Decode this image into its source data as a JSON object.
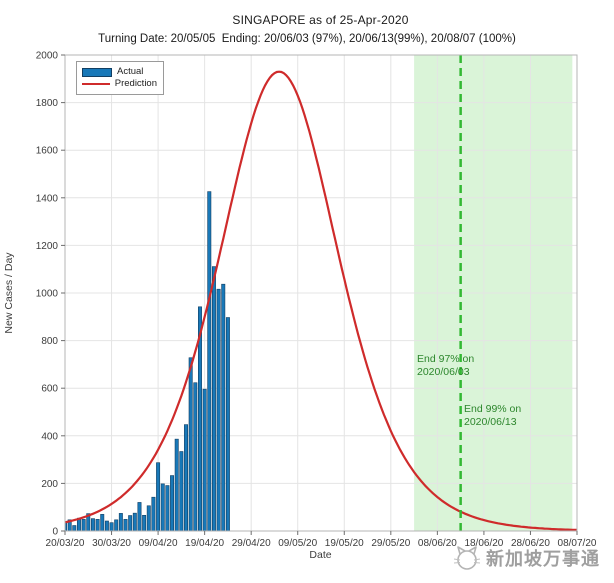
{
  "title": "SINGAPORE as of 25-Apr-2020",
  "subtitle": "Turning Date: 20/05/05  Ending: 20/06/03 (97%), 20/06/13(99%), 20/08/07 (100%)",
  "legend": {
    "actual_label": "Actual",
    "prediction_label": "Prediction"
  },
  "axes": {
    "xlabel": "Date",
    "ylabel": "New Cases / Day"
  },
  "annotations": {
    "end97": {
      "line1": "End 97% on",
      "line2": "2020/06/03"
    },
    "end99": {
      "line1": "End 99% on",
      "line2": "2020/06/13"
    }
  },
  "watermark": {
    "text": "新加坡万事通"
  },
  "chart_data": {
    "type": "bar",
    "title": "SINGAPORE as of 25-Apr-2020",
    "xlabel": "Date",
    "ylabel": "New Cases / Day",
    "ylim": [
      0,
      2000
    ],
    "y_ticks": [
      0,
      200,
      400,
      600,
      800,
      1000,
      1200,
      1400,
      1600,
      1800,
      2000
    ],
    "x_domain_days": [
      0,
      110
    ],
    "x_ticks_days": [
      0,
      10,
      20,
      30,
      40,
      50,
      60,
      70,
      80,
      90,
      100,
      110
    ],
    "x_tick_labels": [
      "20/03/20",
      "30/03/20",
      "09/04/20",
      "19/04/20",
      "29/04/20",
      "09/05/20",
      "19/05/20",
      "29/05/20",
      "08/06/20",
      "18/06/20",
      "28/06/20",
      "08/07/20"
    ],
    "grid": true,
    "legend_position": "top-left",
    "series": [
      {
        "name": "Actual",
        "kind": "bar",
        "start_date": "2020-03-20",
        "end_date": "2020-04-24",
        "values": [
          40,
          47,
          23,
          54,
          49,
          73,
          52,
          49,
          70,
          42,
          35,
          47,
          74,
          49,
          65,
          75,
          120,
          66,
          106,
          142,
          287,
          198,
          191,
          233,
          386,
          334,
          447,
          728,
          623,
          942,
          596,
          1426,
          1111,
          1016,
          1037,
          897
        ]
      },
      {
        "name": "Prediction",
        "kind": "line",
        "model": "peak*sech^2((day-peak_day)/tau)",
        "peak_value": 1930,
        "peak_day": 46,
        "peak_date": "2020-05-05",
        "tau_days": 17.2,
        "sample_days": [
          0,
          5,
          10,
          15,
          20,
          25,
          30,
          35,
          40,
          45,
          50,
          55,
          60,
          65,
          70,
          75,
          80,
          85,
          90,
          95,
          100,
          105,
          110
        ],
        "sample_values": [
          36,
          65,
          112,
          198,
          332,
          568,
          903,
          1316,
          1713,
          1923,
          1829,
          1486,
          1059,
          687,
          421,
          248,
          143,
          81,
          46,
          26,
          14,
          8,
          4
        ]
      }
    ],
    "events": {
      "shade_start_day": 75,
      "shade_end_day": 109,
      "shade_start_date": "2020-06-03",
      "dashed_line_day": 85,
      "dashed_line_date": "2020-06-13"
    },
    "colors": {
      "bar_fill": "#1878b8",
      "bar_edge": "#123f63",
      "prediction_line": "#cf2b2b",
      "dashed_line": "#33b833",
      "shade_fill": "#daf4d8",
      "annotation_text": "#2d862d",
      "grid": "#e4e4e4",
      "axis_box": "#b4b4b4",
      "tick_text": "#3c3c3c"
    }
  }
}
